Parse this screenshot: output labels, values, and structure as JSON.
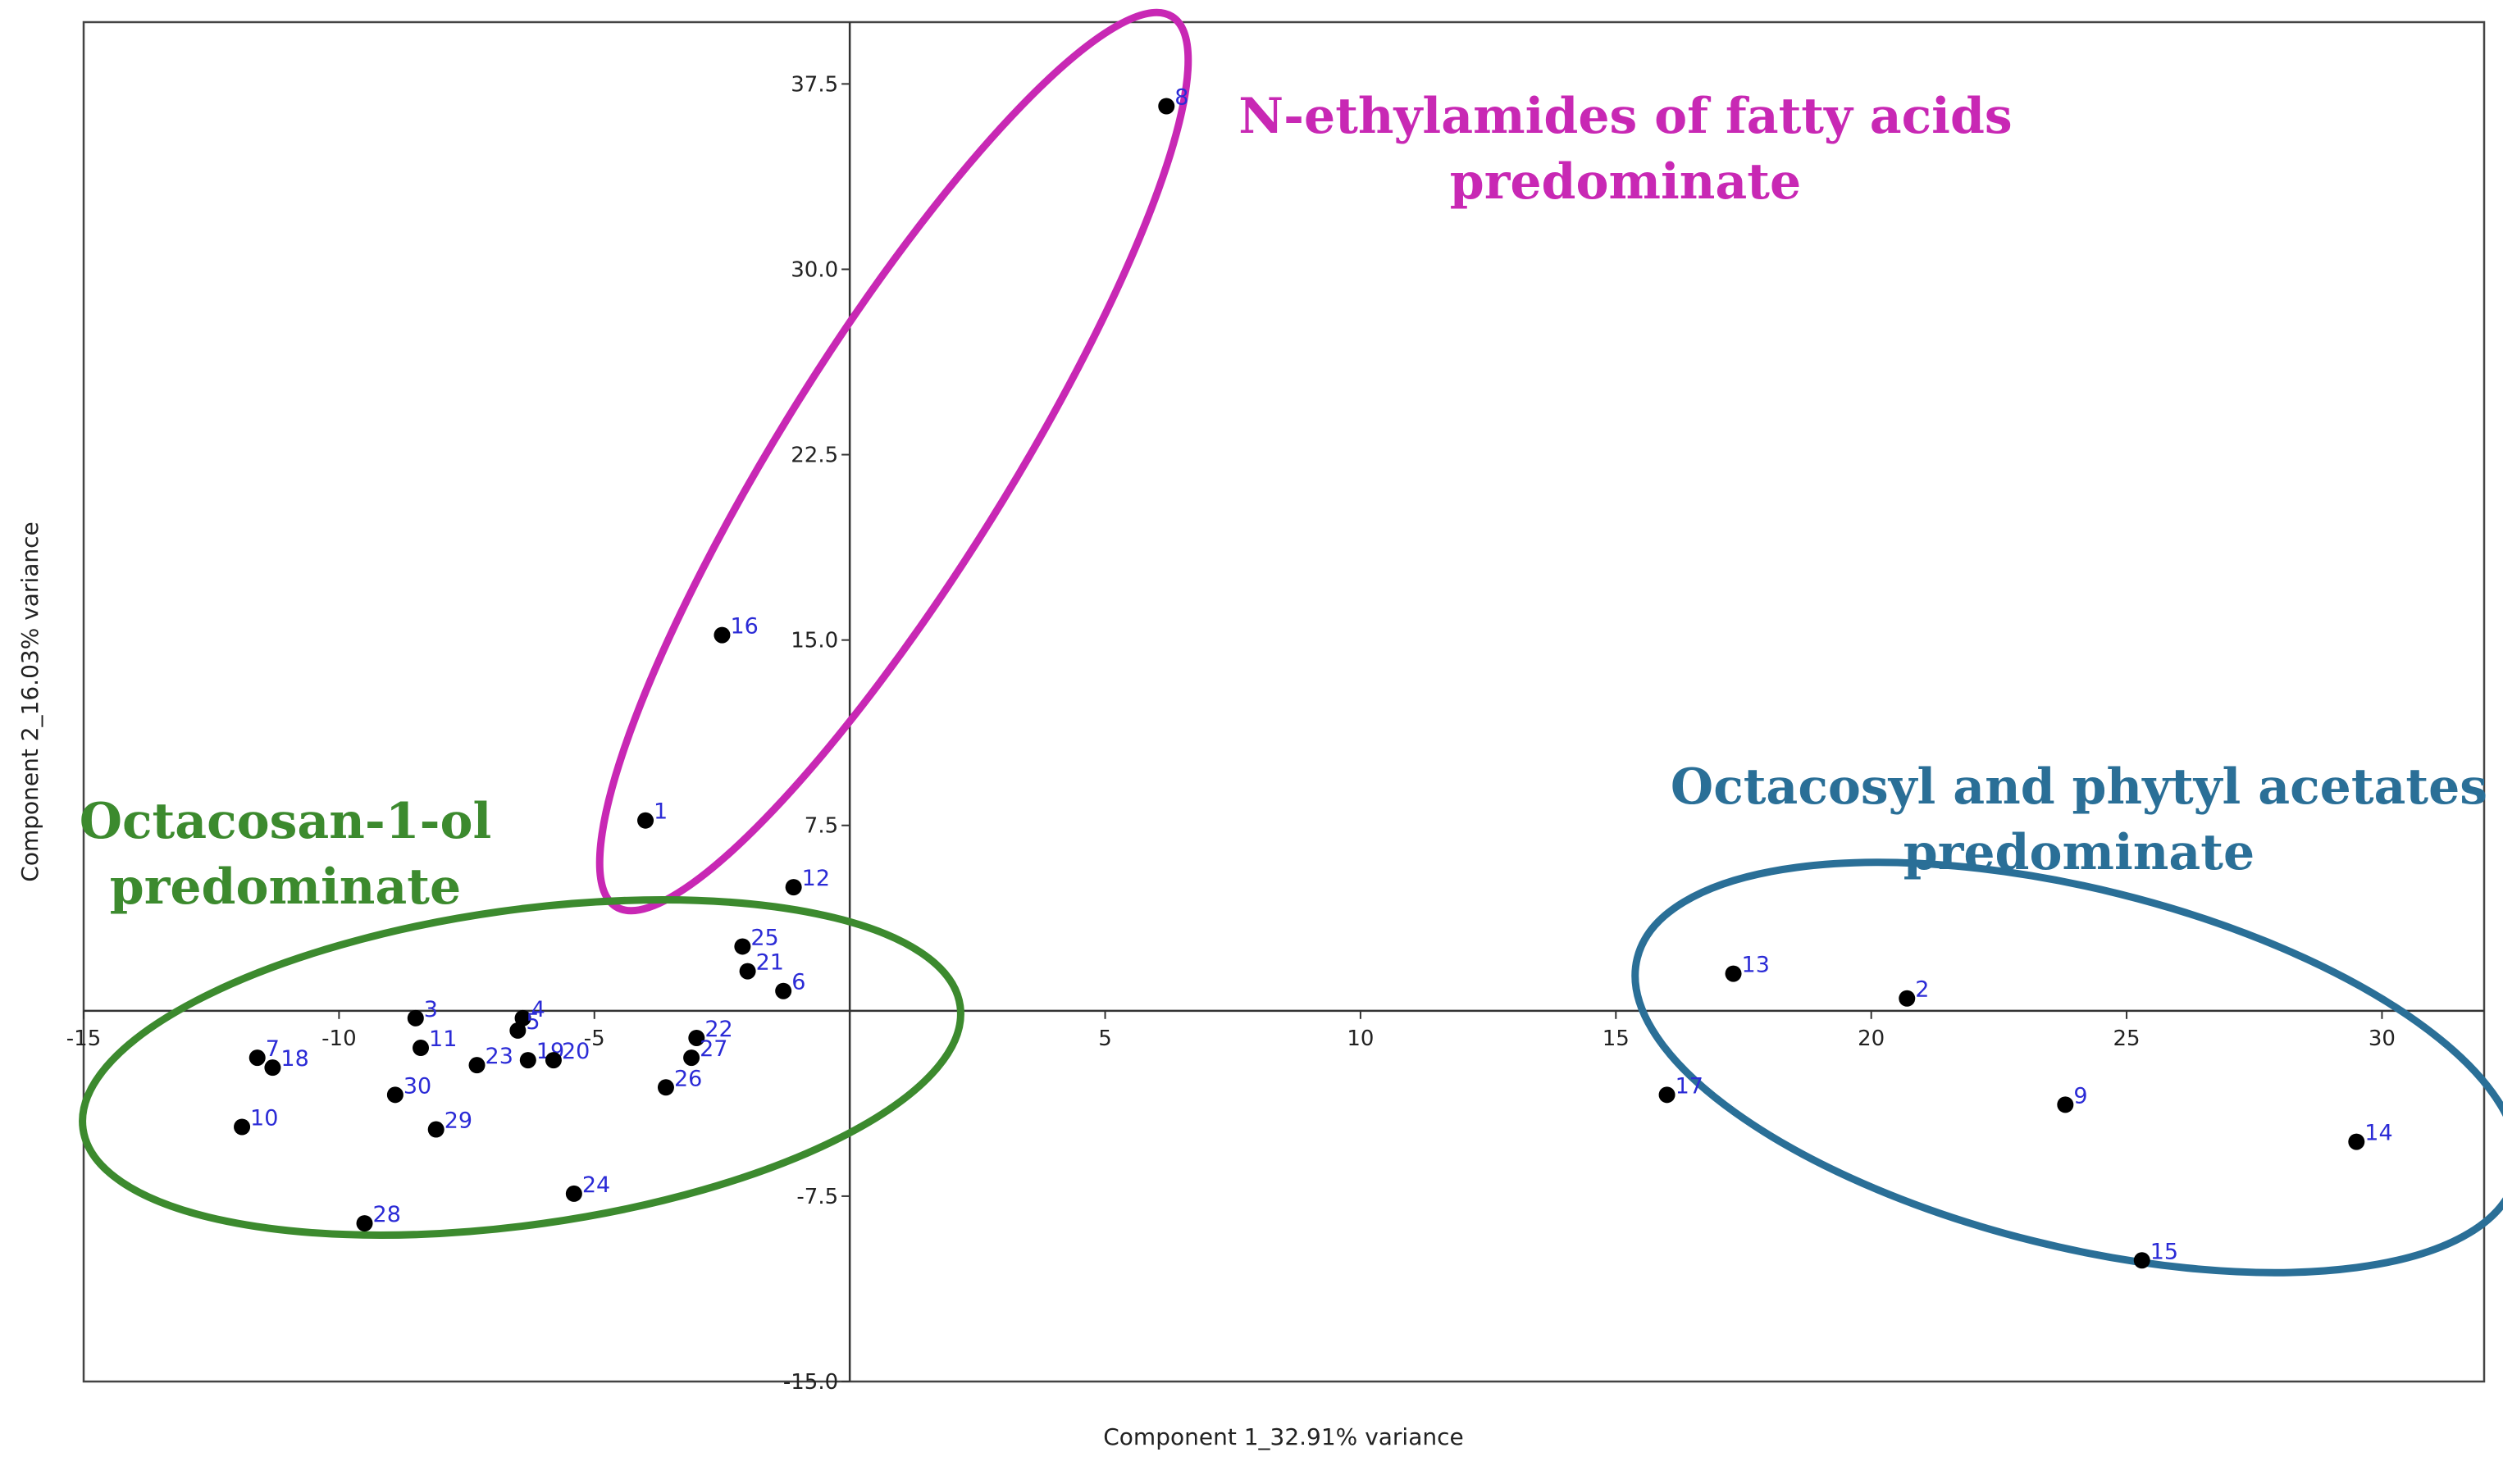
{
  "chart_data": {
    "type": "scatter",
    "title": "",
    "xlabel": "Component 1_32.91% variance",
    "ylabel": "Component 2_16.03% variance",
    "xlim": [
      -15,
      32
    ],
    "ylim": [
      -15,
      40
    ],
    "xticks": [
      -15,
      -10,
      -5,
      5,
      10,
      15,
      20,
      25,
      30
    ],
    "xtick_labels": [
      "-15",
      "-10",
      "-5",
      "5",
      "10",
      "15",
      "20",
      "25",
      "30"
    ],
    "yticks": [
      37.5,
      30.0,
      22.5,
      15.0,
      7.5,
      -7.5,
      -15.0
    ],
    "ytick_labels": [
      "37.5",
      "30.0",
      "22.5",
      "15.0",
      "7.5",
      "-7.5",
      "-15.0"
    ],
    "point_color": "#000000",
    "label_color": "#2b2bd6",
    "points": [
      {
        "label": "1",
        "x": -4.0,
        "y": 7.7
      },
      {
        "label": "2",
        "x": 20.7,
        "y": 0.5
      },
      {
        "label": "3",
        "x": -8.5,
        "y": -0.3
      },
      {
        "label": "4",
        "x": -6.4,
        "y": -0.3
      },
      {
        "label": "5",
        "x": -6.5,
        "y": -0.8
      },
      {
        "label": "6",
        "x": -1.3,
        "y": 0.8
      },
      {
        "label": "7",
        "x": -11.6,
        "y": -1.9
      },
      {
        "label": "8",
        "x": 6.2,
        "y": 36.6
      },
      {
        "label": "9",
        "x": 23.8,
        "y": -3.8
      },
      {
        "label": "10",
        "x": -11.9,
        "y": -4.7
      },
      {
        "label": "11",
        "x": -8.4,
        "y": -1.5
      },
      {
        "label": "12",
        "x": -1.1,
        "y": 5.0
      },
      {
        "label": "13",
        "x": 17.3,
        "y": 1.5
      },
      {
        "label": "14",
        "x": 29.5,
        "y": -5.3
      },
      {
        "label": "15",
        "x": 25.3,
        "y": -10.1
      },
      {
        "label": "16",
        "x": -2.5,
        "y": 15.2
      },
      {
        "label": "17",
        "x": 16.0,
        "y": -3.4
      },
      {
        "label": "18",
        "x": -11.3,
        "y": -2.3
      },
      {
        "label": "19",
        "x": -6.3,
        "y": -2.0
      },
      {
        "label": "20",
        "x": -5.8,
        "y": -2.0
      },
      {
        "label": "21",
        "x": -2.0,
        "y": 1.6
      },
      {
        "label": "22",
        "x": -3.0,
        "y": -1.1
      },
      {
        "label": "23",
        "x": -7.3,
        "y": -2.2
      },
      {
        "label": "24",
        "x": -5.4,
        "y": -7.4
      },
      {
        "label": "25",
        "x": -2.1,
        "y": 2.6
      },
      {
        "label": "26",
        "x": -3.6,
        "y": -3.1
      },
      {
        "label": "27",
        "x": -3.1,
        "y": -1.9
      },
      {
        "label": "28",
        "x": -9.5,
        "y": -8.6
      },
      {
        "label": "29",
        "x": -8.1,
        "y": -4.8
      },
      {
        "label": "30",
        "x": -8.9,
        "y": -3.4
      }
    ],
    "groups": [
      {
        "name": "magenta",
        "color": "#c828b4",
        "lines": [
          "N-ethylamides of fatty acids",
          "predominate"
        ],
        "members": [
          "1",
          "8",
          "16"
        ]
      },
      {
        "name": "green",
        "color": "#3c8a2e",
        "lines": [
          "Octacosan-1-ol",
          "predominate"
        ],
        "members": [
          "3",
          "4",
          "5",
          "6",
          "7",
          "10",
          "11",
          "12",
          "18",
          "19",
          "20",
          "21",
          "22",
          "23",
          "24",
          "25",
          "26",
          "27",
          "28",
          "29",
          "30"
        ]
      },
      {
        "name": "blue",
        "color": "#2a6f97",
        "lines": [
          "Octacosyl and phytyl acetates",
          "predominate"
        ],
        "members": [
          "2",
          "9",
          "13",
          "14",
          "15",
          "17"
        ]
      }
    ]
  }
}
